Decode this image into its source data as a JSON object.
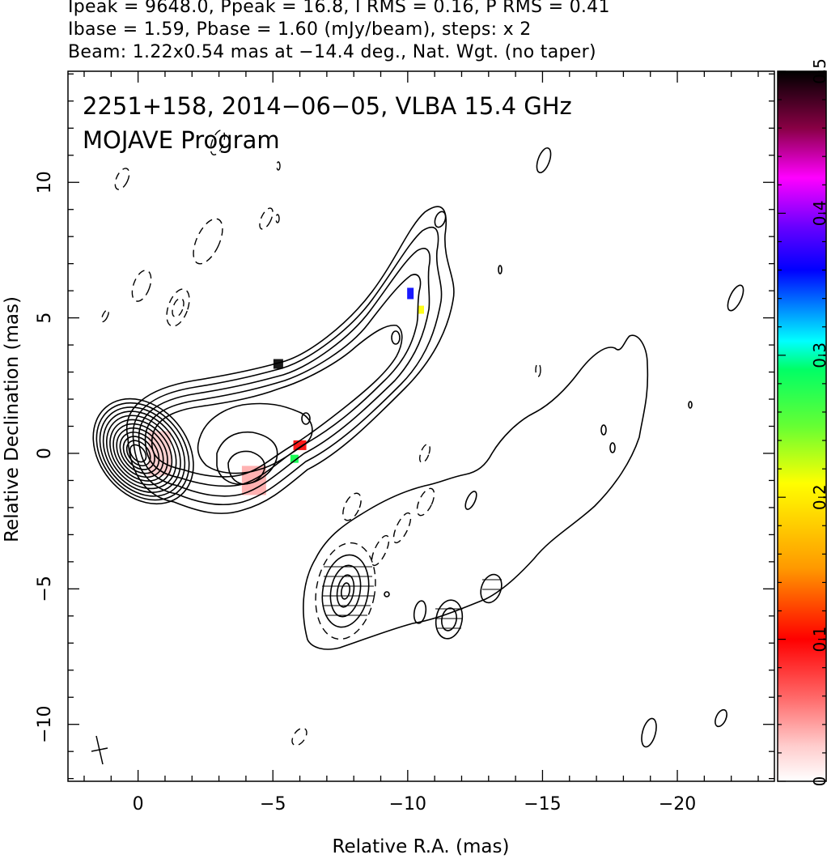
{
  "header": {
    "line1": "Ipeak = 9648.0, Ppeak = 16.8, I RMS = 0.16, P RMS = 0.41",
    "line2": "Ibase = 1.59, Pbase = 1.60 (mJy/beam), steps: x 2",
    "line3": "Beam: 1.22x0.54 mas at −14.4 deg., Nat. Wgt. (no taper)"
  },
  "chart_data": {
    "type": "contour",
    "title_line1": "2251+158, 2014−06−05, VLBA 15.4 GHz",
    "title_line2": "MOJAVE Program",
    "xlabel": "Relative R.A. (mas)",
    "ylabel": "Relative Declination (mas)",
    "xlim": [
      2.6,
      -23.6
    ],
    "ylim": [
      -12.1,
      14.1
    ],
    "x_ticks": [
      0,
      -5,
      -10,
      -15,
      -20
    ],
    "x_tick_labels": [
      "0",
      "−5",
      "−10",
      "−15",
      "−20"
    ],
    "y_ticks": [
      10,
      5,
      0,
      -5,
      -10
    ],
    "y_tick_labels": [
      "10",
      "5",
      "0",
      "−5",
      "−10"
    ],
    "colorbar": {
      "range": [
        0,
        0.5
      ],
      "ticks": [
        0,
        0.1,
        0.2,
        0.3,
        0.4,
        0.5
      ],
      "tick_labels": [
        "0",
        "0.1",
        "0.2",
        "0.3",
        "0.4",
        "0.5"
      ],
      "colors": [
        "#ffffff",
        "#ffcccc",
        "#ff0000",
        "#ff9900",
        "#ffff00",
        "#00ff00",
        "#00ffff",
        "#0000ff",
        "#ff00ff",
        "#000000"
      ]
    },
    "core": {
      "x": 0,
      "y": 0,
      "contour_levels": 12
    },
    "polarization_patches": [
      {
        "x": -0.8,
        "y": 0.0,
        "value": 0.03
      },
      {
        "x": -4.3,
        "y": -1.0,
        "value": 0.09
      },
      {
        "x": -5.2,
        "y": 3.3,
        "value": 0.5
      },
      {
        "x": -6.0,
        "y": 0.3,
        "value": 0.1
      },
      {
        "x": -5.8,
        "y": -0.2,
        "value": 0.28
      },
      {
        "x": -10.1,
        "y": 5.9,
        "value": 0.42
      },
      {
        "x": -10.5,
        "y": 5.3,
        "value": 0.22
      }
    ],
    "beam": {
      "x": -1.5,
      "y": -11.0,
      "major": 1.22,
      "minor": 0.54,
      "pa_deg": -14.4
    }
  }
}
